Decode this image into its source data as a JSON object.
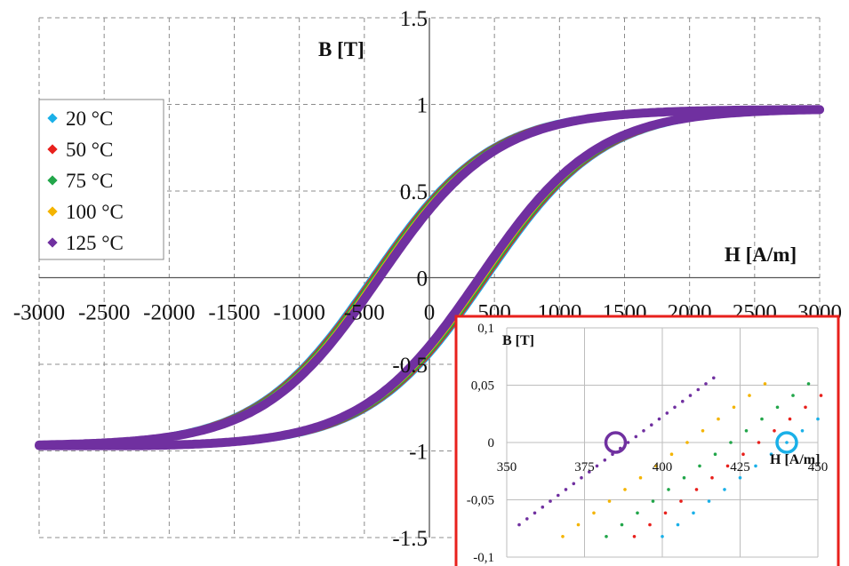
{
  "chart_data": [
    {
      "type": "scatter",
      "title": "",
      "xlabel": "H [A/m]",
      "ylabel": "B [T]",
      "xlim": [
        -3000,
        3000
      ],
      "ylim": [
        -1.5,
        1.5
      ],
      "xticks": [
        "-3000",
        "-2500",
        "-2000",
        "-1500",
        "-1000",
        "-500",
        "0",
        "500",
        "1000",
        "1500",
        "2000",
        "2500",
        "3000"
      ],
      "yticks": [
        "-1.5",
        "-1",
        "-0.5",
        "0",
        "0.5",
        "1",
        "1.5"
      ],
      "grid": true,
      "legend_position": "left",
      "series": [
        {
          "name": "20 °C",
          "color": "#1ab0e8",
          "coercivity": 440,
          "bmax": 0.97
        },
        {
          "name": "50 °C",
          "color": "#e8201c",
          "coercivity": 430,
          "bmax": 0.97
        },
        {
          "name": "75 °C",
          "color": "#22a64a",
          "coercivity": 420,
          "bmax": 0.97
        },
        {
          "name": "100 °C",
          "color": "#f4b400",
          "coercivity": 405,
          "bmax": 0.97
        },
        {
          "name": "125 °C",
          "color": "#7030a0",
          "coercivity": 385,
          "bmax": 0.97
        }
      ]
    },
    {
      "type": "scatter",
      "title": "",
      "xlabel": "H [A/m]",
      "ylabel": "B [T]",
      "xlim": [
        350,
        450
      ],
      "ylim": [
        -0.1,
        0.1
      ],
      "xticks": [
        "350",
        "375",
        "400",
        "425",
        "450"
      ],
      "yticks": [
        "0,1",
        "0,05",
        "0",
        "-0,05",
        "-0,1"
      ],
      "grid": true,
      "series": [
        {
          "name": "20 °C",
          "color": "#1ab0e8",
          "x0": 440,
          "slope": 0.00205
        },
        {
          "name": "50 °C",
          "color": "#e8201c",
          "x0": 430,
          "slope": 0.00205
        },
        {
          "name": "75 °C",
          "color": "#22a64a",
          "x0": 420,
          "slope": 0.00205
        },
        {
          "name": "100 °C",
          "color": "#f4b400",
          "x0": 405,
          "slope": 0.00205
        },
        {
          "name": "125 °C",
          "color": "#7030a0",
          "x0": 385,
          "slope": 0.00205
        }
      ],
      "markers": [
        {
          "name": "125 °C",
          "color": "#7030a0",
          "x": 385,
          "y": 0
        },
        {
          "name": "20 °C",
          "color": "#1ab0e8",
          "x": 440,
          "y": 0
        }
      ],
      "border_color": "#e8201c"
    }
  ]
}
